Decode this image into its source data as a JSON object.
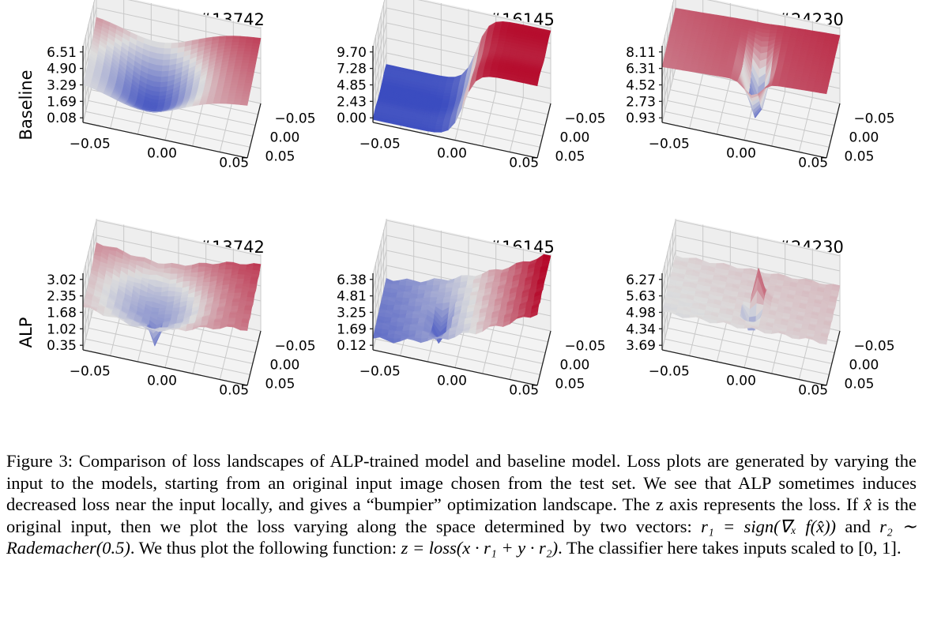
{
  "row_labels": [
    "Baseline",
    "ALP"
  ],
  "chart_data": [
    {
      "type": "surface",
      "row": "Baseline",
      "title": "ImageNet #13742",
      "x_ticks": [
        "−0.05",
        "0.00",
        "0.05"
      ],
      "y_ticks": [
        "−0.05",
        "0.00",
        "0.05"
      ],
      "z_ticks": [
        "6.51",
        "4.90",
        "3.29",
        "1.69",
        "0.08"
      ],
      "zlim": [
        0.08,
        8.1
      ],
      "shape": "valley",
      "ends": {
        "left": 5.6,
        "right": 8.1,
        "back": 5.8,
        "front": 3.0
      }
    },
    {
      "type": "surface",
      "row": "Baseline",
      "title": "ImageNet #16145",
      "x_ticks": [
        "−0.05",
        "0.00",
        "0.05"
      ],
      "y_ticks": [
        "−0.05",
        "0.00",
        "0.05"
      ],
      "z_ticks": [
        "9.70",
        "7.28",
        "4.85",
        "2.43",
        "0.00"
      ],
      "zlim": [
        0.0,
        12.0
      ],
      "shape": "step",
      "ends": {
        "left": 0.1,
        "right": 11.5,
        "back": 6.0,
        "front": 6.0
      }
    },
    {
      "type": "surface",
      "row": "Baseline",
      "title": "ImageNet #24230",
      "x_ticks": [
        "−0.05",
        "0.00",
        "0.05"
      ],
      "y_ticks": [
        "−0.05",
        "0.00",
        "0.05"
      ],
      "z_ticks": [
        "8.11",
        "6.31",
        "4.52",
        "2.73",
        "0.93"
      ],
      "zlim": [
        0.93,
        9.9
      ],
      "shape": "plane-dip",
      "ends": {
        "left": 7.4,
        "right": 9.5,
        "back": 8.6,
        "front": 7.6
      }
    },
    {
      "type": "surface",
      "row": "ALP",
      "title": "ImageNet #13742",
      "x_ticks": [
        "−0.05",
        "0.00",
        "0.05"
      ],
      "y_ticks": [
        "−0.05",
        "0.00",
        "0.05"
      ],
      "z_ticks": [
        "3.02",
        "2.35",
        "1.68",
        "1.02",
        "0.35"
      ],
      "zlim": [
        0.35,
        3.7
      ],
      "shape": "bowl-spike",
      "ends": {
        "left": 2.7,
        "right": 3.7,
        "back": 2.9,
        "front": 2.0
      }
    },
    {
      "type": "surface",
      "row": "ALP",
      "title": "ImageNet #16145",
      "x_ticks": [
        "−0.05",
        "0.00",
        "0.05"
      ],
      "y_ticks": [
        "−0.05",
        "0.00",
        "0.05"
      ],
      "z_ticks": [
        "6.38",
        "4.81",
        "3.25",
        "1.69",
        "0.12"
      ],
      "zlim": [
        0.12,
        7.9
      ],
      "shape": "ramp-dip",
      "ends": {
        "left": 1.4,
        "right": 7.9,
        "back": 4.6,
        "front": 3.2
      }
    },
    {
      "type": "surface",
      "row": "ALP",
      "title": "ImageNet #24230",
      "x_ticks": [
        "−0.05",
        "0.00",
        "0.05"
      ],
      "y_ticks": [
        "−0.05",
        "0.00",
        "0.05"
      ],
      "z_ticks": [
        "6.27",
        "5.63",
        "4.98",
        "4.34",
        "3.69"
      ],
      "zlim": [
        3.69,
        6.9
      ],
      "shape": "spike",
      "ends": {
        "left": 5.3,
        "right": 5.7,
        "back": 5.4,
        "front": 5.2
      }
    }
  ],
  "colormap": {
    "low": "#3b4cc0",
    "mid": "#dddddd",
    "high": "#b40426"
  },
  "caption": {
    "p1": "Figure 3: Comparison of loss landscapes of ALP-trained model and baseline model. Loss plots are generated by varying the input to the models, starting from an original input image chosen from the test set. We see that ALP sometimes induces decreased loss near the input locally, and gives a “bumpier” optimization landscape. The z axis represents the loss. If ",
    "xhat": "x̂",
    "p2": " is the original input, then we plot the loss varying along the space determined by two vectors: ",
    "eq1": "r₁ = sign(∇ₓ f(x̂))",
    "p3": " and ",
    "eq2": "r₂ ∼ Rademacher(0.5)",
    "p4": ". We thus plot the following function: ",
    "eq3": "z = loss(x · r₁ + y · r₂)",
    "p5": ". The classifier here takes inputs scaled to ",
    "eq4": "[0, 1]",
    "p6": "."
  }
}
